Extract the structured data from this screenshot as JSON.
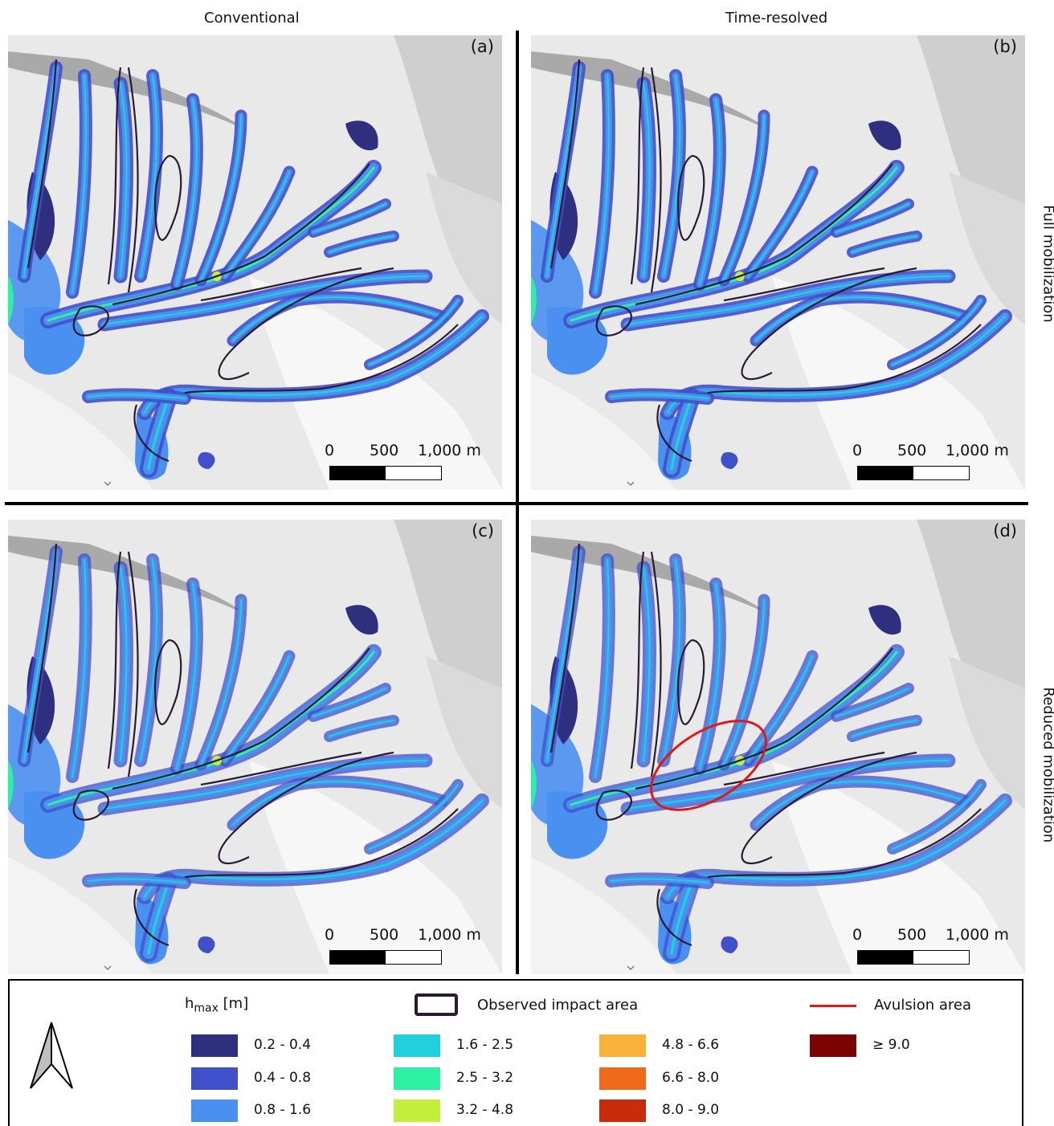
{
  "columns": [
    "Conventional",
    "Time-resolved"
  ],
  "rows": [
    "Full mobilization",
    "Reduced mobilization"
  ],
  "panels": [
    {
      "label": "(a)",
      "avulsion": false
    },
    {
      "label": "(b)",
      "avulsion": false
    },
    {
      "label": "(c)",
      "avulsion": false
    },
    {
      "label": "(d)",
      "avulsion": true
    }
  ],
  "scalebar": {
    "t0": "0",
    "t1": "500",
    "t2": "1,000 m"
  },
  "legend": {
    "hmax_main": "h",
    "hmax_sub": "max",
    "hmax_unit": " [m]",
    "observed_label": "Observed impact area",
    "avulsion_label": "Avulsion area",
    "classes": [
      {
        "label": "0.2 - 0.4",
        "color": "#2f2f7f"
      },
      {
        "label": "0.4 - 0.8",
        "color": "#3f50c8"
      },
      {
        "label": "0.8 - 1.6",
        "color": "#4a90f0"
      },
      {
        "label": "1.6 - 2.5",
        "color": "#22cfdc"
      },
      {
        "label": "2.5 - 3.2",
        "color": "#2ef0a4"
      },
      {
        "label": "3.2 - 4.8",
        "color": "#c2f03a"
      },
      {
        "label": "4.8 - 6.6",
        "color": "#f8b43a"
      },
      {
        "label": "6.6 - 8.0",
        "color": "#f06a1c"
      },
      {
        "label": "8.0 - 9.0",
        "color": "#c82c0a"
      },
      {
        "label": "≥ 9.0",
        "color": "#7a0404"
      }
    ]
  },
  "colors": {
    "observed": "#2a1a33",
    "avulsion": "#e01818"
  }
}
